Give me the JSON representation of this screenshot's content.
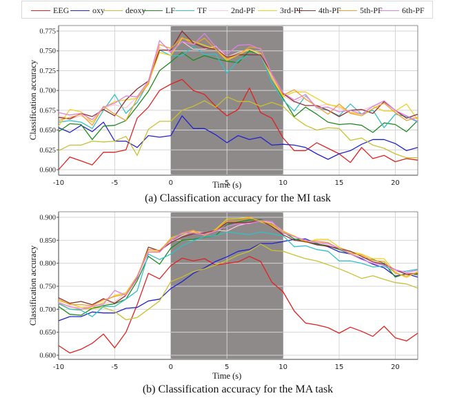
{
  "legend": [
    {
      "name": "EEG",
      "color": "#e02020"
    },
    {
      "name": "oxy",
      "color": "#2222cc"
    },
    {
      "name": "deoxy",
      "color": "#c8c030"
    },
    {
      "name": "LF",
      "color": "#1e8a1e"
    },
    {
      "name": "TF",
      "color": "#30c0c8"
    },
    {
      "name": "2nd-PF",
      "color": "#f8c8d0"
    },
    {
      "name": "3rd-PF",
      "color": "#f0d020"
    },
    {
      "name": "4th-PF",
      "color": "#8b3030"
    },
    {
      "name": "5th-PF",
      "color": "#f0a030"
    },
    {
      "name": "6th-PF",
      "color": "#e080e0"
    }
  ],
  "chart_data": [
    {
      "type": "line",
      "title": "(a) Classification accuracy for the MI task",
      "xlabel": "Time (s)",
      "ylabel": "Classification accuracy",
      "xlim": [
        -10,
        22
      ],
      "ylim": [
        0.593,
        0.782
      ],
      "xticks": [
        -10,
        -5,
        0,
        5,
        10,
        15,
        20
      ],
      "yticks": [
        "0.600",
        "0.625",
        "0.650",
        "0.675",
        "0.700",
        "0.725",
        "0.750",
        "0.775"
      ],
      "grid": true,
      "legend_position": "top",
      "shaded_region": {
        "x_start": 0,
        "x_end": 10,
        "color": "#8e8a8a"
      },
      "x": [
        -10,
        -9,
        -8,
        -7,
        -6,
        -5,
        -4,
        -3,
        -2,
        -1,
        0,
        1,
        2,
        3,
        4,
        5,
        6,
        7,
        8,
        9,
        10,
        11,
        12,
        13,
        14,
        15,
        16,
        17,
        18,
        19,
        20,
        21,
        22
      ],
      "series": [
        {
          "name": "EEG",
          "values": [
            0.6,
            0.616,
            0.611,
            0.606,
            0.622,
            0.622,
            0.625,
            0.665,
            0.679,
            0.7,
            0.708,
            0.714,
            0.7,
            0.695,
            0.68,
            0.668,
            0.676,
            0.703,
            0.672,
            0.665,
            0.64,
            0.624,
            0.624,
            0.634,
            0.627,
            0.62,
            0.609,
            0.628,
            0.614,
            0.618,
            0.61,
            0.614,
            0.612
          ]
        },
        {
          "name": "oxy",
          "values": [
            0.653,
            0.647,
            0.656,
            0.648,
            0.66,
            0.636,
            0.636,
            0.628,
            0.643,
            0.641,
            0.643,
            0.668,
            0.652,
            0.652,
            0.644,
            0.634,
            0.643,
            0.638,
            0.641,
            0.631,
            0.632,
            0.631,
            0.628,
            0.62,
            0.613,
            0.62,
            0.624,
            0.632,
            0.638,
            0.638,
            0.633,
            0.624,
            0.628
          ]
        },
        {
          "name": "deoxy",
          "values": [
            0.624,
            0.631,
            0.631,
            0.636,
            0.635,
            0.636,
            0.642,
            0.618,
            0.651,
            0.661,
            0.661,
            0.675,
            0.68,
            0.687,
            0.679,
            0.692,
            0.686,
            0.686,
            0.68,
            0.685,
            0.68,
            0.666,
            0.656,
            0.65,
            0.653,
            0.652,
            0.637,
            0.64,
            0.631,
            0.627,
            0.62,
            0.615,
            0.615
          ]
        },
        {
          "name": "LF",
          "values": [
            0.648,
            0.658,
            0.657,
            0.638,
            0.655,
            0.656,
            0.662,
            0.68,
            0.699,
            0.725,
            0.736,
            0.748,
            0.738,
            0.744,
            0.74,
            0.737,
            0.735,
            0.75,
            0.745,
            0.715,
            0.69,
            0.667,
            0.679,
            0.67,
            0.66,
            0.657,
            0.658,
            0.656,
            0.647,
            0.659,
            0.657,
            0.648,
            0.662
          ]
        },
        {
          "name": "TF",
          "values": [
            0.66,
            0.662,
            0.66,
            0.652,
            0.675,
            0.695,
            0.671,
            0.685,
            0.71,
            0.751,
            0.744,
            0.744,
            0.756,
            0.745,
            0.746,
            0.722,
            0.738,
            0.745,
            0.745,
            0.71,
            0.688,
            0.674,
            0.693,
            0.678,
            0.675,
            0.668,
            0.683,
            0.67,
            0.675,
            0.653,
            0.67,
            0.667,
            0.66
          ]
        },
        {
          "name": "2nd-PF",
          "values": [
            0.668,
            0.664,
            0.668,
            0.66,
            0.678,
            0.682,
            0.678,
            0.692,
            0.712,
            0.754,
            0.748,
            0.762,
            0.752,
            0.752,
            0.756,
            0.742,
            0.748,
            0.752,
            0.745,
            0.718,
            0.693,
            0.685,
            0.692,
            0.68,
            0.683,
            0.678,
            0.672,
            0.675,
            0.68,
            0.685,
            0.672,
            0.668,
            0.664
          ]
        },
        {
          "name": "3rd-PF",
          "values": [
            0.655,
            0.676,
            0.673,
            0.66,
            0.678,
            0.686,
            0.688,
            0.69,
            0.71,
            0.748,
            0.744,
            0.766,
            0.762,
            0.757,
            0.752,
            0.738,
            0.745,
            0.752,
            0.747,
            0.715,
            0.692,
            0.698,
            0.698,
            0.69,
            0.682,
            0.68,
            0.672,
            0.67,
            0.68,
            0.674,
            0.674,
            0.683,
            0.663
          ]
        },
        {
          "name": "4th-PF",
          "values": [
            0.666,
            0.664,
            0.671,
            0.667,
            0.676,
            0.668,
            0.688,
            0.702,
            0.712,
            0.751,
            0.751,
            0.775,
            0.76,
            0.754,
            0.752,
            0.742,
            0.745,
            0.745,
            0.745,
            0.721,
            0.696,
            0.686,
            0.681,
            0.681,
            0.675,
            0.667,
            0.675,
            0.676,
            0.671,
            0.686,
            0.675,
            0.665,
            0.67
          ]
        },
        {
          "name": "5th-PF",
          "values": [
            0.662,
            0.666,
            0.67,
            0.656,
            0.68,
            0.67,
            0.662,
            0.69,
            0.708,
            0.758,
            0.753,
            0.767,
            0.758,
            0.766,
            0.752,
            0.74,
            0.745,
            0.755,
            0.753,
            0.72,
            0.694,
            0.701,
            0.689,
            0.68,
            0.67,
            0.683,
            0.671,
            0.668,
            0.677,
            0.684,
            0.672,
            0.662,
            0.666
          ]
        },
        {
          "name": "6th-PF",
          "values": [
            0.672,
            0.669,
            0.671,
            0.663,
            0.679,
            0.684,
            0.693,
            0.692,
            0.712,
            0.763,
            0.748,
            0.762,
            0.758,
            0.772,
            0.755,
            0.746,
            0.757,
            0.758,
            0.752,
            0.721,
            0.697,
            0.688,
            0.695,
            0.678,
            0.679,
            0.673,
            0.675,
            0.67,
            0.68,
            0.687,
            0.675,
            0.668,
            0.661
          ]
        }
      ]
    },
    {
      "type": "line",
      "title": "(b) Classification accuracy for the MA task",
      "xlabel": "Time (s)",
      "ylabel": "Classification accuracy",
      "xlim": [
        -10,
        22
      ],
      "ylim": [
        0.591,
        0.912
      ],
      "xticks": [
        -10,
        -5,
        0,
        5,
        10,
        15,
        20
      ],
      "yticks": [
        "0.600",
        "0.650",
        "0.700",
        "0.750",
        "0.800",
        "0.850",
        "0.900"
      ],
      "grid": true,
      "legend_position": "top",
      "shaded_region": {
        "x_start": 0,
        "x_end": 10,
        "color": "#8e8a8a"
      },
      "x": [
        -10,
        -9,
        -8,
        -7,
        -6,
        -5,
        -4,
        -3,
        -2,
        -1,
        0,
        1,
        2,
        3,
        4,
        5,
        6,
        7,
        8,
        9,
        10,
        11,
        12,
        13,
        14,
        15,
        16,
        17,
        18,
        19,
        20,
        21,
        22
      ],
      "series": [
        {
          "name": "EEG",
          "values": [
            0.621,
            0.605,
            0.613,
            0.626,
            0.646,
            0.616,
            0.65,
            0.71,
            0.778,
            0.766,
            0.795,
            0.811,
            0.805,
            0.81,
            0.796,
            0.8,
            0.803,
            0.815,
            0.804,
            0.759,
            0.738,
            0.696,
            0.67,
            0.666,
            0.66,
            0.648,
            0.661,
            0.652,
            0.641,
            0.663,
            0.638,
            0.631,
            0.648
          ]
        },
        {
          "name": "oxy",
          "values": [
            0.675,
            0.684,
            0.684,
            0.694,
            0.692,
            0.692,
            0.702,
            0.704,
            0.718,
            0.722,
            0.745,
            0.76,
            0.778,
            0.79,
            0.804,
            0.814,
            0.826,
            0.83,
            0.843,
            0.843,
            0.847,
            0.852,
            0.853,
            0.843,
            0.836,
            0.825,
            0.82,
            0.81,
            0.798,
            0.79,
            0.772,
            0.777,
            0.77
          ]
        },
        {
          "name": "deoxy",
          "values": [
            0.714,
            0.7,
            0.7,
            0.702,
            0.704,
            0.695,
            0.677,
            0.682,
            0.7,
            0.718,
            0.76,
            0.77,
            0.782,
            0.788,
            0.796,
            0.806,
            0.818,
            0.826,
            0.842,
            0.828,
            0.826,
            0.818,
            0.81,
            0.805,
            0.797,
            0.788,
            0.778,
            0.767,
            0.773,
            0.765,
            0.758,
            0.755,
            0.746
          ]
        },
        {
          "name": "LF",
          "values": [
            0.706,
            0.689,
            0.687,
            0.702,
            0.708,
            0.712,
            0.722,
            0.762,
            0.815,
            0.798,
            0.833,
            0.85,
            0.852,
            0.857,
            0.86,
            0.884,
            0.89,
            0.894,
            0.895,
            0.887,
            0.868,
            0.853,
            0.848,
            0.842,
            0.838,
            0.83,
            0.82,
            0.812,
            0.808,
            0.8,
            0.77,
            0.778,
            0.775
          ]
        },
        {
          "name": "TF",
          "values": [
            0.712,
            0.7,
            0.698,
            0.684,
            0.706,
            0.706,
            0.722,
            0.74,
            0.82,
            0.808,
            0.82,
            0.838,
            0.849,
            0.858,
            0.86,
            0.868,
            0.865,
            0.862,
            0.868,
            0.864,
            0.86,
            0.836,
            0.838,
            0.83,
            0.826,
            0.805,
            0.805,
            0.8,
            0.792,
            0.794,
            0.781,
            0.783,
            0.787
          ]
        },
        {
          "name": "2nd-PF",
          "values": [
            0.716,
            0.704,
            0.704,
            0.708,
            0.712,
            0.716,
            0.736,
            0.77,
            0.828,
            0.828,
            0.845,
            0.86,
            0.87,
            0.866,
            0.872,
            0.87,
            0.882,
            0.888,
            0.892,
            0.888,
            0.87,
            0.858,
            0.848,
            0.845,
            0.84,
            0.832,
            0.822,
            0.812,
            0.807,
            0.798,
            0.782,
            0.778,
            0.78
          ]
        },
        {
          "name": "3rd-PF",
          "values": [
            0.718,
            0.712,
            0.704,
            0.703,
            0.715,
            0.73,
            0.736,
            0.772,
            0.825,
            0.826,
            0.855,
            0.864,
            0.868,
            0.862,
            0.874,
            0.896,
            0.897,
            0.9,
            0.89,
            0.882,
            0.868,
            0.86,
            0.845,
            0.852,
            0.852,
            0.835,
            0.825,
            0.82,
            0.81,
            0.81,
            0.78,
            0.769,
            0.782
          ]
        },
        {
          "name": "4th-PF",
          "values": [
            0.725,
            0.713,
            0.717,
            0.71,
            0.723,
            0.713,
            0.73,
            0.768,
            0.835,
            0.827,
            0.845,
            0.857,
            0.864,
            0.866,
            0.872,
            0.888,
            0.888,
            0.889,
            0.893,
            0.88,
            0.862,
            0.85,
            0.847,
            0.84,
            0.837,
            0.832,
            0.826,
            0.815,
            0.803,
            0.798,
            0.786,
            0.776,
            0.778
          ]
        },
        {
          "name": "5th-PF",
          "values": [
            0.722,
            0.71,
            0.71,
            0.708,
            0.72,
            0.728,
            0.733,
            0.772,
            0.83,
            0.828,
            0.852,
            0.866,
            0.872,
            0.86,
            0.872,
            0.892,
            0.892,
            0.898,
            0.892,
            0.885,
            0.87,
            0.858,
            0.848,
            0.848,
            0.845,
            0.832,
            0.822,
            0.818,
            0.806,
            0.804,
            0.778,
            0.772,
            0.78
          ]
        },
        {
          "name": "6th-PF",
          "values": [
            0.714,
            0.706,
            0.7,
            0.706,
            0.711,
            0.741,
            0.73,
            0.77,
            0.824,
            0.824,
            0.85,
            0.866,
            0.866,
            0.862,
            0.87,
            0.88,
            0.886,
            0.886,
            0.893,
            0.891,
            0.866,
            0.858,
            0.85,
            0.845,
            0.843,
            0.833,
            0.82,
            0.808,
            0.8,
            0.796,
            0.786,
            0.78,
            0.785
          ]
        }
      ]
    }
  ]
}
